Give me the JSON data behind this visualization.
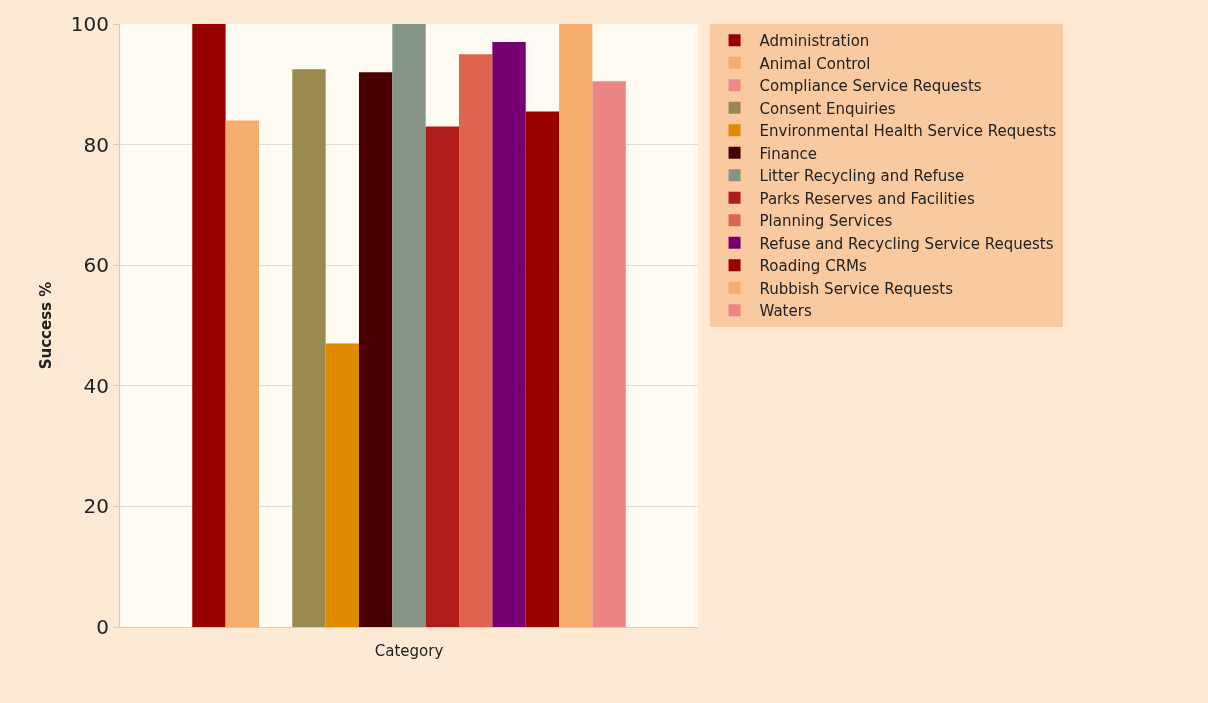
{
  "chart_data": {
    "type": "bar",
    "xlabel": "Category",
    "ylabel": "Success %",
    "categories": [
      null
    ],
    "series": [
      {
        "name": "Administration",
        "color": "#990000",
        "values": [
          100
        ]
      },
      {
        "name": "Animal Control",
        "color": "#f4ad6b",
        "values": [
          84
        ]
      },
      {
        "name": "Compliance Service Requests",
        "color": "#ee8a88",
        "values": [
          0
        ]
      },
      {
        "name": "Consent Enquiries",
        "color": "#9b8a50",
        "values": [
          92.5
        ]
      },
      {
        "name": "Environmental Health Service Requests",
        "color": "#e08a00",
        "values": [
          47
        ]
      },
      {
        "name": "Finance",
        "color": "#4a0000",
        "values": [
          92
        ]
      },
      {
        "name": "Litter Recycling and Refuse",
        "color": "#859484",
        "values": [
          100
        ]
      },
      {
        "name": "Parks Reserves and Facilities",
        "color": "#b01c1c",
        "values": [
          83
        ]
      },
      {
        "name": "Planning Services",
        "color": "#de6450",
        "values": [
          95
        ]
      },
      {
        "name": "Refuse and Recycling Service Requests",
        "color": "#760070",
        "values": [
          97
        ]
      },
      {
        "name": "Roading CRMs",
        "color": "#990000",
        "values": [
          85.5
        ]
      },
      {
        "name": "Rubbish Service Requests",
        "color": "#f4ad6b",
        "values": [
          100
        ]
      },
      {
        "name": "Waters",
        "color": "#ec8485",
        "values": [
          90.5
        ]
      }
    ],
    "ylim": [
      0,
      100
    ],
    "yticks": [
      0,
      20,
      40,
      60,
      80,
      100
    ],
    "grid": "y",
    "legend": "top right"
  }
}
